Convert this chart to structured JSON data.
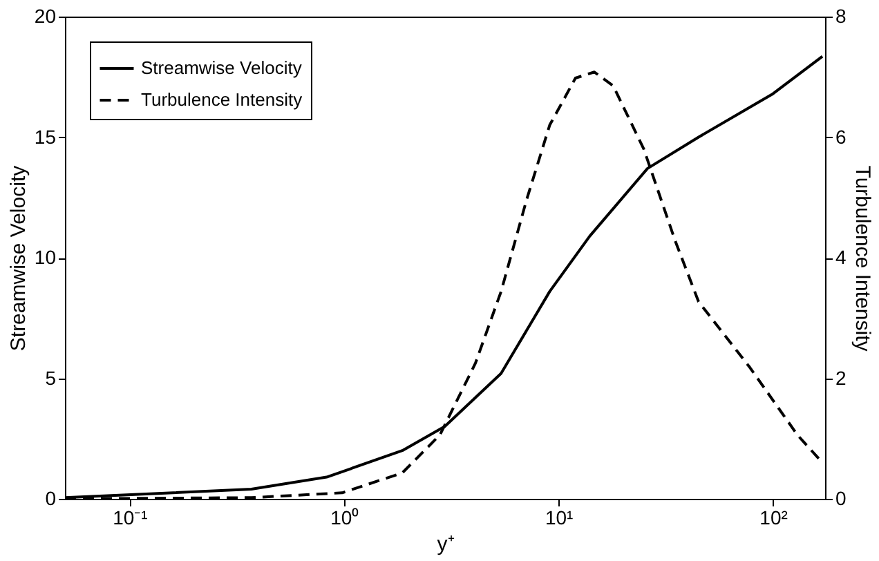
{
  "chart_data": {
    "type": "line",
    "xlabel": "y⁺",
    "ylabel": "Streamwise Velocity",
    "y2label": "Turbulence Intensity",
    "log": "x",
    "grid": false,
    "legend": "top left",
    "marker": "none",
    "xlim": [
      0.05,
      175
    ],
    "xticks": [
      {
        "value": 0.1,
        "label": "10⁻¹"
      },
      {
        "value": 1,
        "label": "10⁰"
      },
      {
        "value": 10,
        "label": "10¹"
      },
      {
        "value": 100,
        "label": "10²"
      }
    ],
    "ylim": [
      0,
      20
    ],
    "yticks": [
      0,
      5,
      10,
      15,
      20
    ],
    "y2lim": [
      0,
      8
    ],
    "y2ticks": [
      0,
      2,
      4,
      6,
      8
    ],
    "series": [
      {
        "name": "Streamwise Velocity",
        "color": "#000000",
        "line_style": "solid",
        "x": [
          0.05,
          0.37,
          0.83,
          1.87,
          2.95,
          5.4,
          9.1,
          14,
          26,
          45,
          100,
          170
        ],
        "values": [
          0.05,
          0.4,
          0.9,
          2.0,
          3.0,
          5.2,
          8.6,
          10.9,
          13.7,
          15.0,
          16.8,
          18.35
        ]
      },
      {
        "name": "Turbulence Intensity",
        "color": "#000000",
        "line_style": "dashed",
        "axis": "y2",
        "x": [
          0.05,
          0.37,
          0.98,
          1.87,
          2.8,
          4.1,
          5.4,
          7.1,
          9.1,
          12,
          14.7,
          18,
          25,
          35,
          45,
          78,
          130,
          170
        ],
        "values": [
          0.0,
          0.02,
          0.1,
          0.43,
          1.06,
          2.25,
          3.44,
          4.96,
          6.2,
          6.98,
          7.08,
          6.85,
          5.8,
          4.28,
          3.27,
          2.18,
          1.06,
          0.6
        ]
      }
    ]
  }
}
